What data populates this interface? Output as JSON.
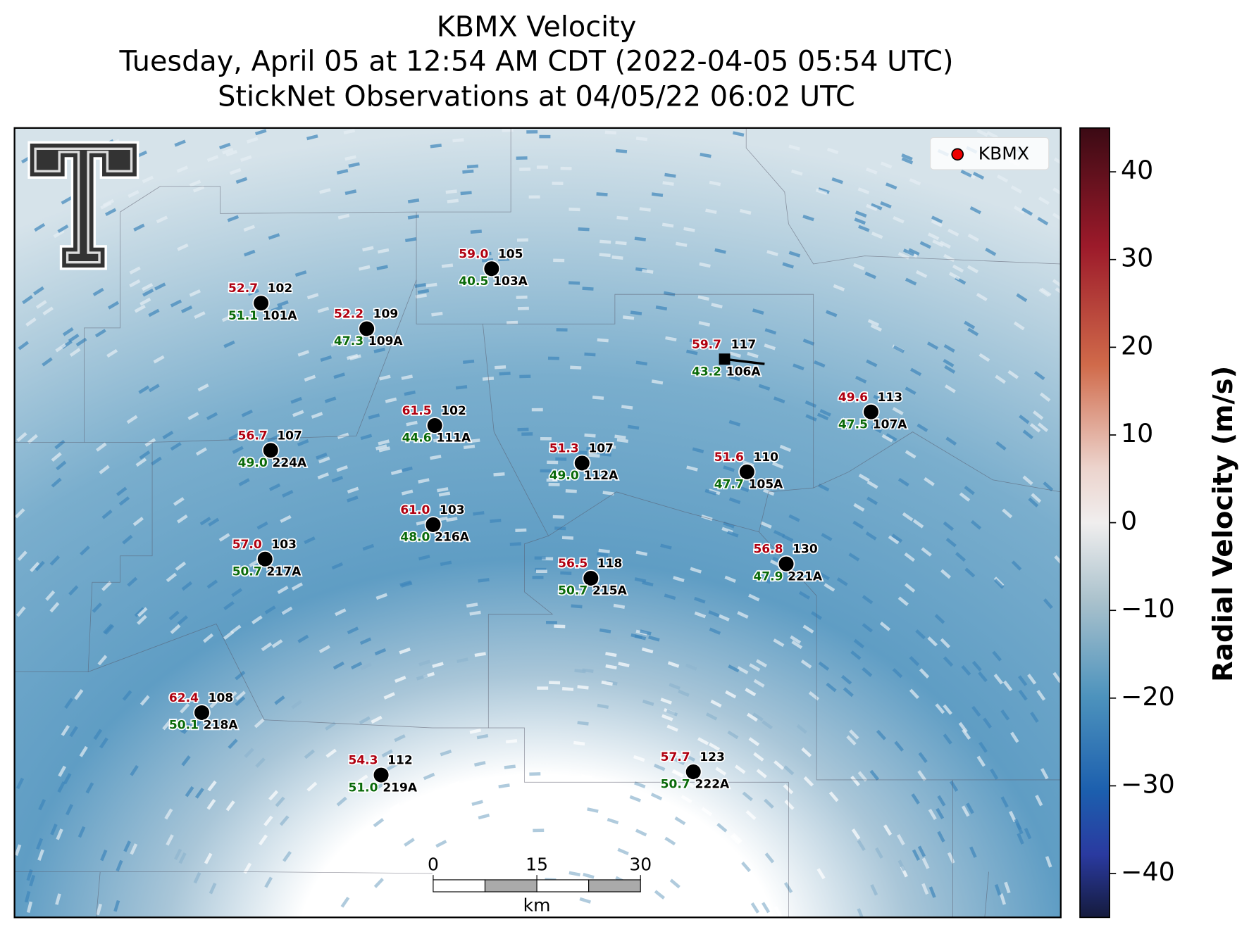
{
  "header": {
    "title": [
      "KBMX Velocity",
      "Tuesday, April 05 at 12:54 AM CDT (2022-04-05 05:54 UTC)",
      "StickNet Observations at 04/05/22 06:02 UTC"
    ]
  },
  "legend": {
    "label": "KBMX"
  },
  "stations": [
    {
      "id": "102",
      "alt_id": "101A",
      "red": "52.7",
      "green": "51.1"
    },
    {
      "id": "109",
      "alt_id": "109A",
      "red": "52.2",
      "green": "47.3"
    },
    {
      "id": "105",
      "alt_id": "103A",
      "red": "59.0",
      "green": "40.5"
    },
    {
      "id": "117",
      "alt_id": "106A",
      "red": "59.7",
      "green": "43.2"
    },
    {
      "id": "113",
      "alt_id": "107A",
      "red": "49.6",
      "green": "47.5"
    },
    {
      "id": "102",
      "alt_id": "111A",
      "red": "61.5",
      "green": "44.6"
    },
    {
      "id": "107",
      "alt_id": "224A",
      "red": "56.7",
      "green": "49.0"
    },
    {
      "id": "107",
      "alt_id": "112A",
      "red": "51.3",
      "green": "49.0"
    },
    {
      "id": "110",
      "alt_id": "105A",
      "red": "51.6",
      "green": "47.7"
    },
    {
      "id": "103",
      "alt_id": "216A",
      "red": "61.0",
      "green": "48.0"
    },
    {
      "id": "103",
      "alt_id": "217A",
      "red": "57.0",
      "green": "50.7"
    },
    {
      "id": "130",
      "alt_id": "221A",
      "red": "56.8",
      "green": "47.9"
    },
    {
      "id": "118",
      "alt_id": "215A",
      "red": "56.5",
      "green": "50.7"
    },
    {
      "id": "108",
      "alt_id": "218A",
      "red": "62.4",
      "green": "50.1"
    },
    {
      "id": "112",
      "alt_id": "219A",
      "red": "54.3",
      "green": "51.0"
    },
    {
      "id": "123",
      "alt_id": "222A",
      "red": "57.7",
      "green": "50.7"
    }
  ],
  "colorbar": {
    "label": "Radial Velocity (m/s)",
    "lim": [
      -45,
      45
    ],
    "ticks": [
      {
        "value": -40,
        "label": "−40"
      },
      {
        "value": -30,
        "label": "−30"
      },
      {
        "value": -20,
        "label": "−20"
      },
      {
        "value": -10,
        "label": "−10"
      },
      0,
      10,
      20,
      30,
      40
    ]
  },
  "scalebar": {
    "ticks": [
      0,
      15,
      30
    ],
    "unit": "km"
  }
}
